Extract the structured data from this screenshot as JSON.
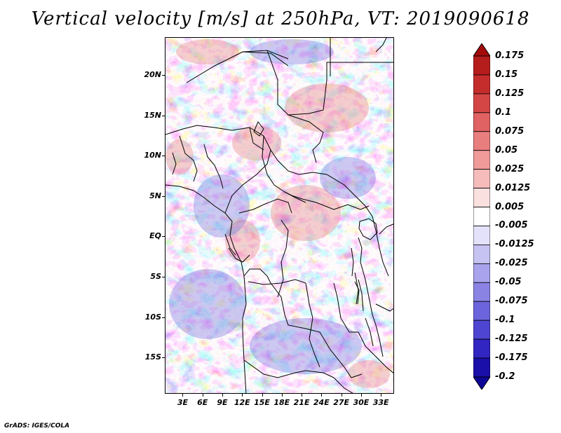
{
  "title": "Vertical velocity [m/s] at 250hPa, VT: 2019090618",
  "credit": "GrADS: IGES/COLA",
  "map": {
    "lat_labels": [
      "20N",
      "15N",
      "10N",
      "5N",
      "EQ",
      "5S",
      "10S",
      "15S"
    ],
    "lon_labels": [
      "3E",
      "6E",
      "9E",
      "12E",
      "15E",
      "18E",
      "21E",
      "24E",
      "27E",
      "30E",
      "33E"
    ],
    "lat_values": [
      20,
      15,
      10,
      5,
      0,
      -5,
      -10,
      -15
    ],
    "lon_values": [
      3,
      6,
      9,
      12,
      15,
      18,
      21,
      24,
      27,
      30,
      33
    ],
    "lat_range": [
      -19.5,
      24.7
    ],
    "lon_range": [
      0.3,
      35
    ]
  },
  "colorbar": {
    "labels": [
      "0.175",
      "0.15",
      "0.125",
      "0.1",
      "0.075",
      "0.05",
      "0.025",
      "0.0125",
      "0.005",
      "-0.005",
      "-0.0125",
      "-0.025",
      "-0.05",
      "-0.075",
      "-0.1",
      "-0.125",
      "-0.175",
      "-0.2"
    ],
    "colors": [
      "#a30b0b",
      "#b51c1c",
      "#c52d2d",
      "#d44646",
      "#e06262",
      "#e87e7e",
      "#f09a9a",
      "#f6bcbc",
      "#fbe0e0",
      "#ffffff",
      "#e4e2fa",
      "#c6c3f3",
      "#a8a3ec",
      "#8a83e4",
      "#6c64dc",
      "#4e45d2",
      "#3126c2",
      "#1a0fa8",
      "#0e0696"
    ]
  },
  "colors": {
    "positive": "#d84a4a",
    "negative": "#5550d8",
    "border": "#000000"
  }
}
